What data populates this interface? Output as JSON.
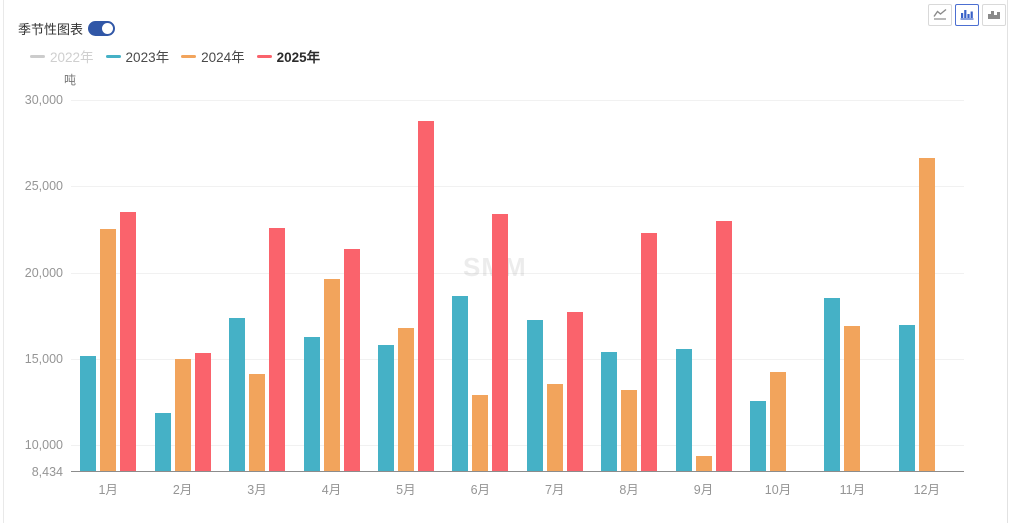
{
  "header": {
    "toggle_label": "季节性图表",
    "toggle_state": "on",
    "chart_type_buttons": [
      {
        "icon": "line-chart-icon",
        "selected": false
      },
      {
        "icon": "bar-chart-icon",
        "selected": true
      },
      {
        "icon": "stacked-bar-chart-icon",
        "selected": false
      }
    ]
  },
  "colors": {
    "toggle_on": "#3157a7",
    "selected_button": "#4c6fd1",
    "series_2022": "#cccccc",
    "series_2023": "#45b1c6",
    "series_2024": "#f2a45c",
    "series_2025": "#fa636c",
    "axis_line": "#8c8c8c",
    "gridline": "#f1f1f1",
    "tick_text": "#959595"
  },
  "watermark": "SMM",
  "chart_data": {
    "type": "bar",
    "title": "季节性图表",
    "unit_label": "吨",
    "categories": [
      "1月",
      "2月",
      "3月",
      "4月",
      "5月",
      "6月",
      "7月",
      "8月",
      "9月",
      "10月",
      "11月",
      "12月"
    ],
    "series": [
      {
        "name": "2022年",
        "color": "#cccccc",
        "disabled": true,
        "emphasized": false,
        "values": [
          null,
          null,
          null,
          null,
          null,
          null,
          null,
          null,
          null,
          null,
          null,
          null
        ]
      },
      {
        "name": "2023年",
        "color": "#45b1c6",
        "disabled": false,
        "emphasized": false,
        "values": [
          15150,
          11850,
          17350,
          16250,
          15800,
          18650,
          17250,
          15400,
          15550,
          12550,
          18550,
          16950
        ]
      },
      {
        "name": "2024年",
        "color": "#f2a45c",
        "disabled": false,
        "emphasized": false,
        "values": [
          22500,
          15000,
          14100,
          19650,
          16800,
          12900,
          13550,
          13200,
          9350,
          14250,
          16900,
          26650
        ]
      },
      {
        "name": "2025年",
        "color": "#fa636c",
        "disabled": false,
        "emphasized": true,
        "values": [
          23500,
          15350,
          22600,
          21350,
          28800,
          23400,
          17700,
          22300,
          23000,
          null,
          null,
          null
        ]
      }
    ],
    "ylim": [
      8434,
      30000
    ],
    "yticks": [
      8434,
      10000,
      15000,
      20000,
      25000,
      30000
    ],
    "grid": true,
    "legend_position": "top-left"
  }
}
